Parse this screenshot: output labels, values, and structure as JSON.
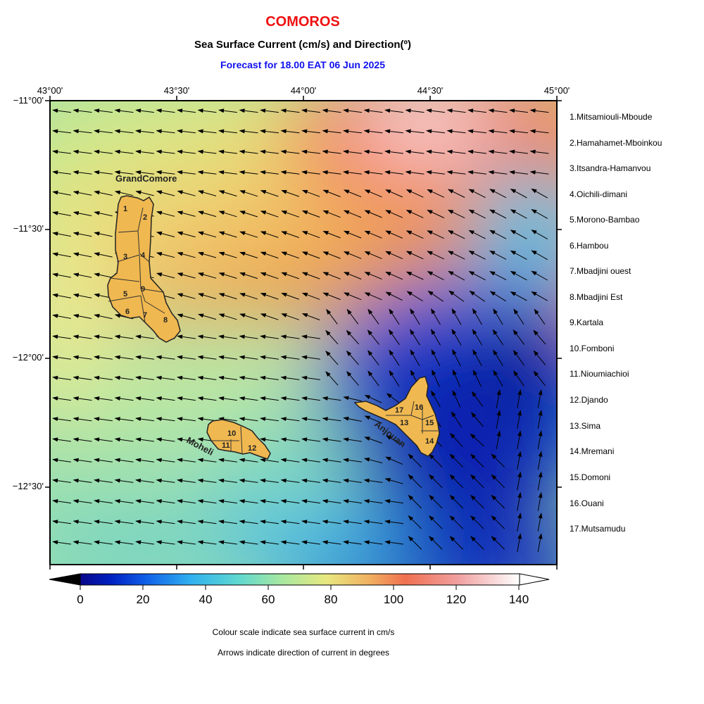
{
  "header": {
    "title": "COMOROS",
    "subtitle": "Sea Surface Current (cm/s) and Direction(º)",
    "forecast": "Forecast for  18.00 EAT 06 Jun 2025"
  },
  "axes": {
    "lon_labels": [
      "43°00'",
      "43°30'",
      "44°00'",
      "44°30'",
      "45°00'"
    ],
    "lat_labels": [
      "−11°00'",
      "−11°30'",
      "−12°00'",
      "−12°30'"
    ]
  },
  "island_labels": {
    "grand_comore": "GrandComore",
    "moheli": "Moheli",
    "anjouan": "Anjouan"
  },
  "region_numbers": [
    "1",
    "2",
    "3",
    "4",
    "5",
    "6",
    "7",
    "8",
    "9",
    "10",
    "11",
    "12",
    "13",
    "14",
    "15",
    "16",
    "17"
  ],
  "regions_legend": [
    "1.Mitsamiouli-Mboude",
    "2.Hamahamet-Mboinkou",
    "3.Itsandra-Hamanvou",
    "4.Oichili-dimani",
    "5.Morono-Bambao",
    "6.Hambou",
    "7.Mbadjini ouest",
    "8.Mbadjini Est",
    "9.Kartala",
    "10.Fomboni",
    "11.Nioumiachioi",
    "12.Djando",
    "13.Sima",
    "14.Mremani",
    "15.Domoni",
    "16.Ouani",
    "17.Mutsamudu"
  ],
  "colorbar": {
    "ticks": [
      "0",
      "20",
      "40",
      "60",
      "80",
      "100",
      "120",
      "140"
    ],
    "unit": "cm/s",
    "colors": [
      "#08088a",
      "#0030d0",
      "#2090f0",
      "#50d0e8",
      "#90e0a8",
      "#e8e880",
      "#f0a050",
      "#f06050",
      "#f0a8a8",
      "#ffffff"
    ]
  },
  "notes": {
    "colour": "Colour scale indicate sea surface current in cm/s",
    "arrows": "Arrows indicate direction of current in degrees"
  }
}
